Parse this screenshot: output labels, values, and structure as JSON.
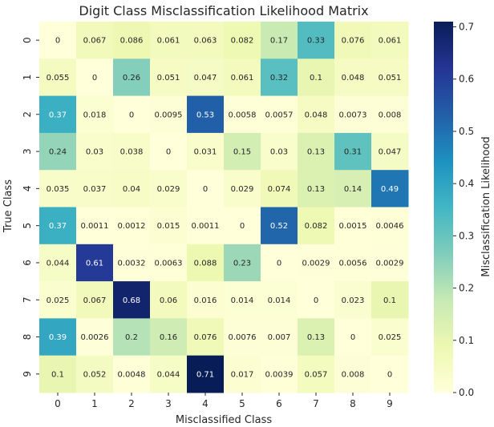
{
  "chart_data": {
    "type": "heatmap",
    "title": "Digit Class Misclassification Likelihood Matrix",
    "xlabel": "Misclassified Class",
    "ylabel": "True Class",
    "x_categories": [
      "0",
      "1",
      "2",
      "3",
      "4",
      "5",
      "6",
      "7",
      "8",
      "9"
    ],
    "y_categories": [
      "0",
      "1",
      "2",
      "3",
      "4",
      "5",
      "6",
      "7",
      "8",
      "9"
    ],
    "values": [
      [
        0,
        0.067,
        0.086,
        0.061,
        0.063,
        0.082,
        0.17,
        0.33,
        0.076,
        0.061
      ],
      [
        0.055,
        0,
        0.26,
        0.051,
        0.047,
        0.061,
        0.32,
        0.1,
        0.048,
        0.051
      ],
      [
        0.37,
        0.018,
        0,
        0.0095,
        0.53,
        0.0058,
        0.0057,
        0.048,
        0.0073,
        0.008
      ],
      [
        0.24,
        0.03,
        0.038,
        0,
        0.031,
        0.15,
        0.03,
        0.13,
        0.31,
        0.047
      ],
      [
        0.035,
        0.037,
        0.04,
        0.029,
        0,
        0.029,
        0.074,
        0.13,
        0.14,
        0.49
      ],
      [
        0.37,
        0.0011,
        0.0012,
        0.015,
        0.0011,
        0,
        0.52,
        0.082,
        0.0015,
        0.0046
      ],
      [
        0.044,
        0.61,
        0.0032,
        0.0063,
        0.088,
        0.23,
        0,
        0.0029,
        0.0056,
        0.0029
      ],
      [
        0.025,
        0.067,
        0.68,
        0.06,
        0.016,
        0.014,
        0.014,
        0,
        0.023,
        0.1
      ],
      [
        0.39,
        0.0026,
        0.2,
        0.16,
        0.076,
        0.0076,
        0.007,
        0.13,
        0,
        0.025
      ],
      [
        0.1,
        0.052,
        0.0048,
        0.044,
        0.71,
        0.017,
        0.0039,
        0.057,
        0.008,
        0
      ]
    ],
    "colorbar": {
      "label": "Misclassification Likelihood",
      "vmin": 0.0,
      "vmax": 0.71,
      "ticks": [
        "0.0",
        "0.1",
        "0.2",
        "0.3",
        "0.4",
        "0.5",
        "0.6",
        "0.7"
      ],
      "colormap": "YlGnBu"
    },
    "grid": false
  }
}
